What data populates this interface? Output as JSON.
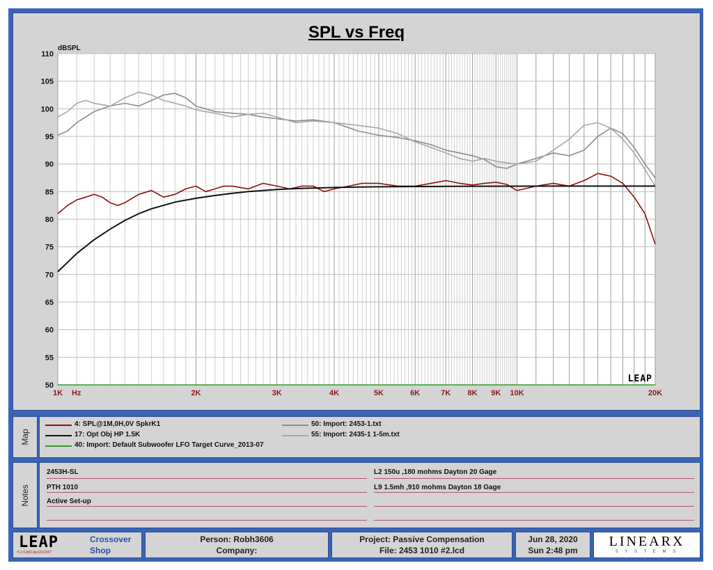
{
  "chart_data": {
    "type": "line",
    "title": "SPL vs Freq",
    "ylabel": "dBSPL",
    "xlabel": "Hz",
    "x_scale": "log",
    "xlim": [
      1000,
      20000
    ],
    "ylim": [
      50,
      110
    ],
    "grid": true,
    "y_ticks": [
      "50",
      "55",
      "60",
      "65",
      "70",
      "75",
      "80",
      "85",
      "90",
      "95",
      "100",
      "105",
      "110"
    ],
    "x_ticks": [
      {
        "v": 1000,
        "label": "1K"
      },
      {
        "v": 2000,
        "label": "2K"
      },
      {
        "v": 3000,
        "label": "3K"
      },
      {
        "v": 4000,
        "label": "4K"
      },
      {
        "v": 5000,
        "label": "5K"
      },
      {
        "v": 6000,
        "label": "6K"
      },
      {
        "v": 7000,
        "label": "7K"
      },
      {
        "v": 8000,
        "label": "8K"
      },
      {
        "v": 9000,
        "label": "9K"
      },
      {
        "v": 10000,
        "label": "10K"
      },
      {
        "v": 20000,
        "label": "20K"
      }
    ],
    "watermark": "LEAP",
    "series": [
      {
        "name": "50: Import: 2453-1.txt",
        "color": "#8c8c8c",
        "x": [
          1000,
          1050,
          1100,
          1150,
          1200,
          1300,
          1400,
          1500,
          1600,
          1700,
          1800,
          1900,
          2000,
          2200,
          2400,
          2600,
          2800,
          3000,
          3300,
          3600,
          4000,
          4500,
          5000,
          5500,
          6000,
          6500,
          7000,
          7500,
          8000,
          8500,
          9000,
          9500,
          10000,
          11000,
          12000,
          13000,
          14000,
          15000,
          16000,
          17000,
          18000,
          19000,
          20000
        ],
        "y": [
          95.2,
          96,
          97.5,
          98.5,
          99.5,
          100.5,
          101,
          100.5,
          101.5,
          102.5,
          102.8,
          102,
          100.5,
          99.5,
          99.2,
          99,
          98.5,
          98.2,
          97.8,
          98,
          97.5,
          96,
          95.2,
          94.8,
          94.2,
          93.5,
          92.5,
          92,
          91.5,
          90.8,
          89.5,
          89.2,
          90,
          91,
          92,
          91.5,
          92.5,
          95,
          96.5,
          95.5,
          93,
          90,
          87.5
        ]
      },
      {
        "name": "55: Import: 2435-1 1-5m.txt",
        "color": "#a8a8a8",
        "x": [
          1000,
          1050,
          1100,
          1150,
          1200,
          1300,
          1400,
          1500,
          1600,
          1700,
          1800,
          1900,
          2000,
          2200,
          2400,
          2600,
          2800,
          3000,
          3300,
          3600,
          4000,
          4500,
          5000,
          5500,
          6000,
          6500,
          7000,
          7500,
          8000,
          8500,
          9000,
          9500,
          10000,
          11000,
          12000,
          13000,
          14000,
          15000,
          16000,
          17000,
          18000,
          19000,
          20000
        ],
        "y": [
          98.5,
          99.5,
          101,
          101.5,
          101,
          100.5,
          102,
          103,
          102.5,
          101.5,
          101,
          100.5,
          99.8,
          99.2,
          98.5,
          99,
          99.2,
          98.5,
          97.5,
          97.8,
          97.5,
          97,
          96.5,
          95.5,
          94,
          93,
          92,
          91,
          90.5,
          91,
          90.5,
          90.2,
          90,
          90.5,
          92.5,
          94.5,
          97,
          97.5,
          96.5,
          94.5,
          92,
          89,
          86
        ]
      },
      {
        "name": "4: SPL@1M,0H,0V SpkrK1",
        "color": "#8b1010",
        "x": [
          1000,
          1050,
          1100,
          1150,
          1200,
          1250,
          1300,
          1350,
          1400,
          1500,
          1600,
          1700,
          1800,
          1900,
          2000,
          2100,
          2200,
          2300,
          2400,
          2600,
          2800,
          3000,
          3200,
          3400,
          3600,
          3800,
          4000,
          4300,
          4600,
          5000,
          5500,
          6000,
          6500,
          7000,
          7500,
          8000,
          8500,
          9000,
          9500,
          10000,
          10500,
          11000,
          12000,
          13000,
          14000,
          15000,
          16000,
          17000,
          18000,
          19000,
          20000
        ],
        "y": [
          81,
          82.5,
          83.5,
          84,
          84.5,
          84,
          83,
          82.5,
          83,
          84.5,
          85.2,
          84,
          84.5,
          85.5,
          86,
          85,
          85.5,
          86,
          86,
          85.5,
          86.5,
          86,
          85.5,
          86,
          86,
          85,
          85.5,
          86,
          86.5,
          86.5,
          86,
          86,
          86.5,
          87,
          86.5,
          86.2,
          86.5,
          86.7,
          86.3,
          85.2,
          85.6,
          86,
          86.5,
          86,
          87,
          88.3,
          87.8,
          86.5,
          84,
          81,
          75.5
        ]
      },
      {
        "name": "17: Opt Obj HP    1.5K",
        "color": "#111111",
        "x": [
          1000,
          1100,
          1200,
          1300,
          1400,
          1500,
          1600,
          1800,
          2000,
          2200,
          2400,
          2600,
          2800,
          3000,
          3300,
          3600,
          4000,
          4500,
          5000,
          6000,
          7000,
          8000,
          10000,
          12000,
          15000,
          20000
        ],
        "y": [
          70.5,
          73.8,
          76.3,
          78.2,
          79.8,
          81,
          81.9,
          83.1,
          83.8,
          84.3,
          84.7,
          85,
          85.2,
          85.4,
          85.55,
          85.65,
          85.75,
          85.82,
          85.87,
          85.92,
          85.95,
          85.97,
          85.99,
          86,
          86,
          86
        ]
      },
      {
        "name": "40: Import: Default Subwoofer LFO Target Curve_2013-07",
        "color": "#2a9d2a",
        "x": [
          1000,
          20000
        ],
        "y": [
          50,
          50
        ]
      }
    ]
  },
  "map": {
    "label": "Map",
    "items": [
      {
        "text": "4: SPL@1M,0H,0V SpkrK1",
        "color": "#8b1010"
      },
      {
        "text": "17: Opt Obj HP    1.5K",
        "color": "#111111"
      },
      {
        "text": "40: Import: Default Subwoofer LFO Target Curve_2013-07",
        "color": "#2a9d2a"
      },
      {
        "text": "50: Import: 2453-1.txt",
        "color": "#8c8c8c"
      },
      {
        "text": "55: Import: 2435-1 1-5m.txt",
        "color": "#a8a8a8"
      }
    ]
  },
  "notes": {
    "label": "Notes",
    "left": [
      "2453H-SL",
      "PTH 1010",
      "Active Set-up",
      ""
    ],
    "right": [
      "L2 150u ,180 mohms  Dayton 20 Gage",
      "L9 1.5mh ,910 mohms  Dayton 18 Gage",
      "",
      ""
    ]
  },
  "footer": {
    "logo": "LEAP",
    "version": "5.2.0.860   Apr/29/2007",
    "product_line1": "Crossover",
    "product_line2": "Shop",
    "person": "Person: Robh3606",
    "company": "Company:",
    "project": "Project: Passive Compensation",
    "file": "File: 2453 1010 #2.lcd",
    "date": "Jun 28, 2020",
    "time": "Sun  2:48 pm",
    "brand": "LINEARX",
    "brand_sub": "S Y S T E M S"
  },
  "colors": {
    "frame": "#3a63b4",
    "panel": "#d4d4d4",
    "plot_bg": "#ffffff",
    "tick_label": "#8b1a1a",
    "link": "#2b4fa8"
  }
}
